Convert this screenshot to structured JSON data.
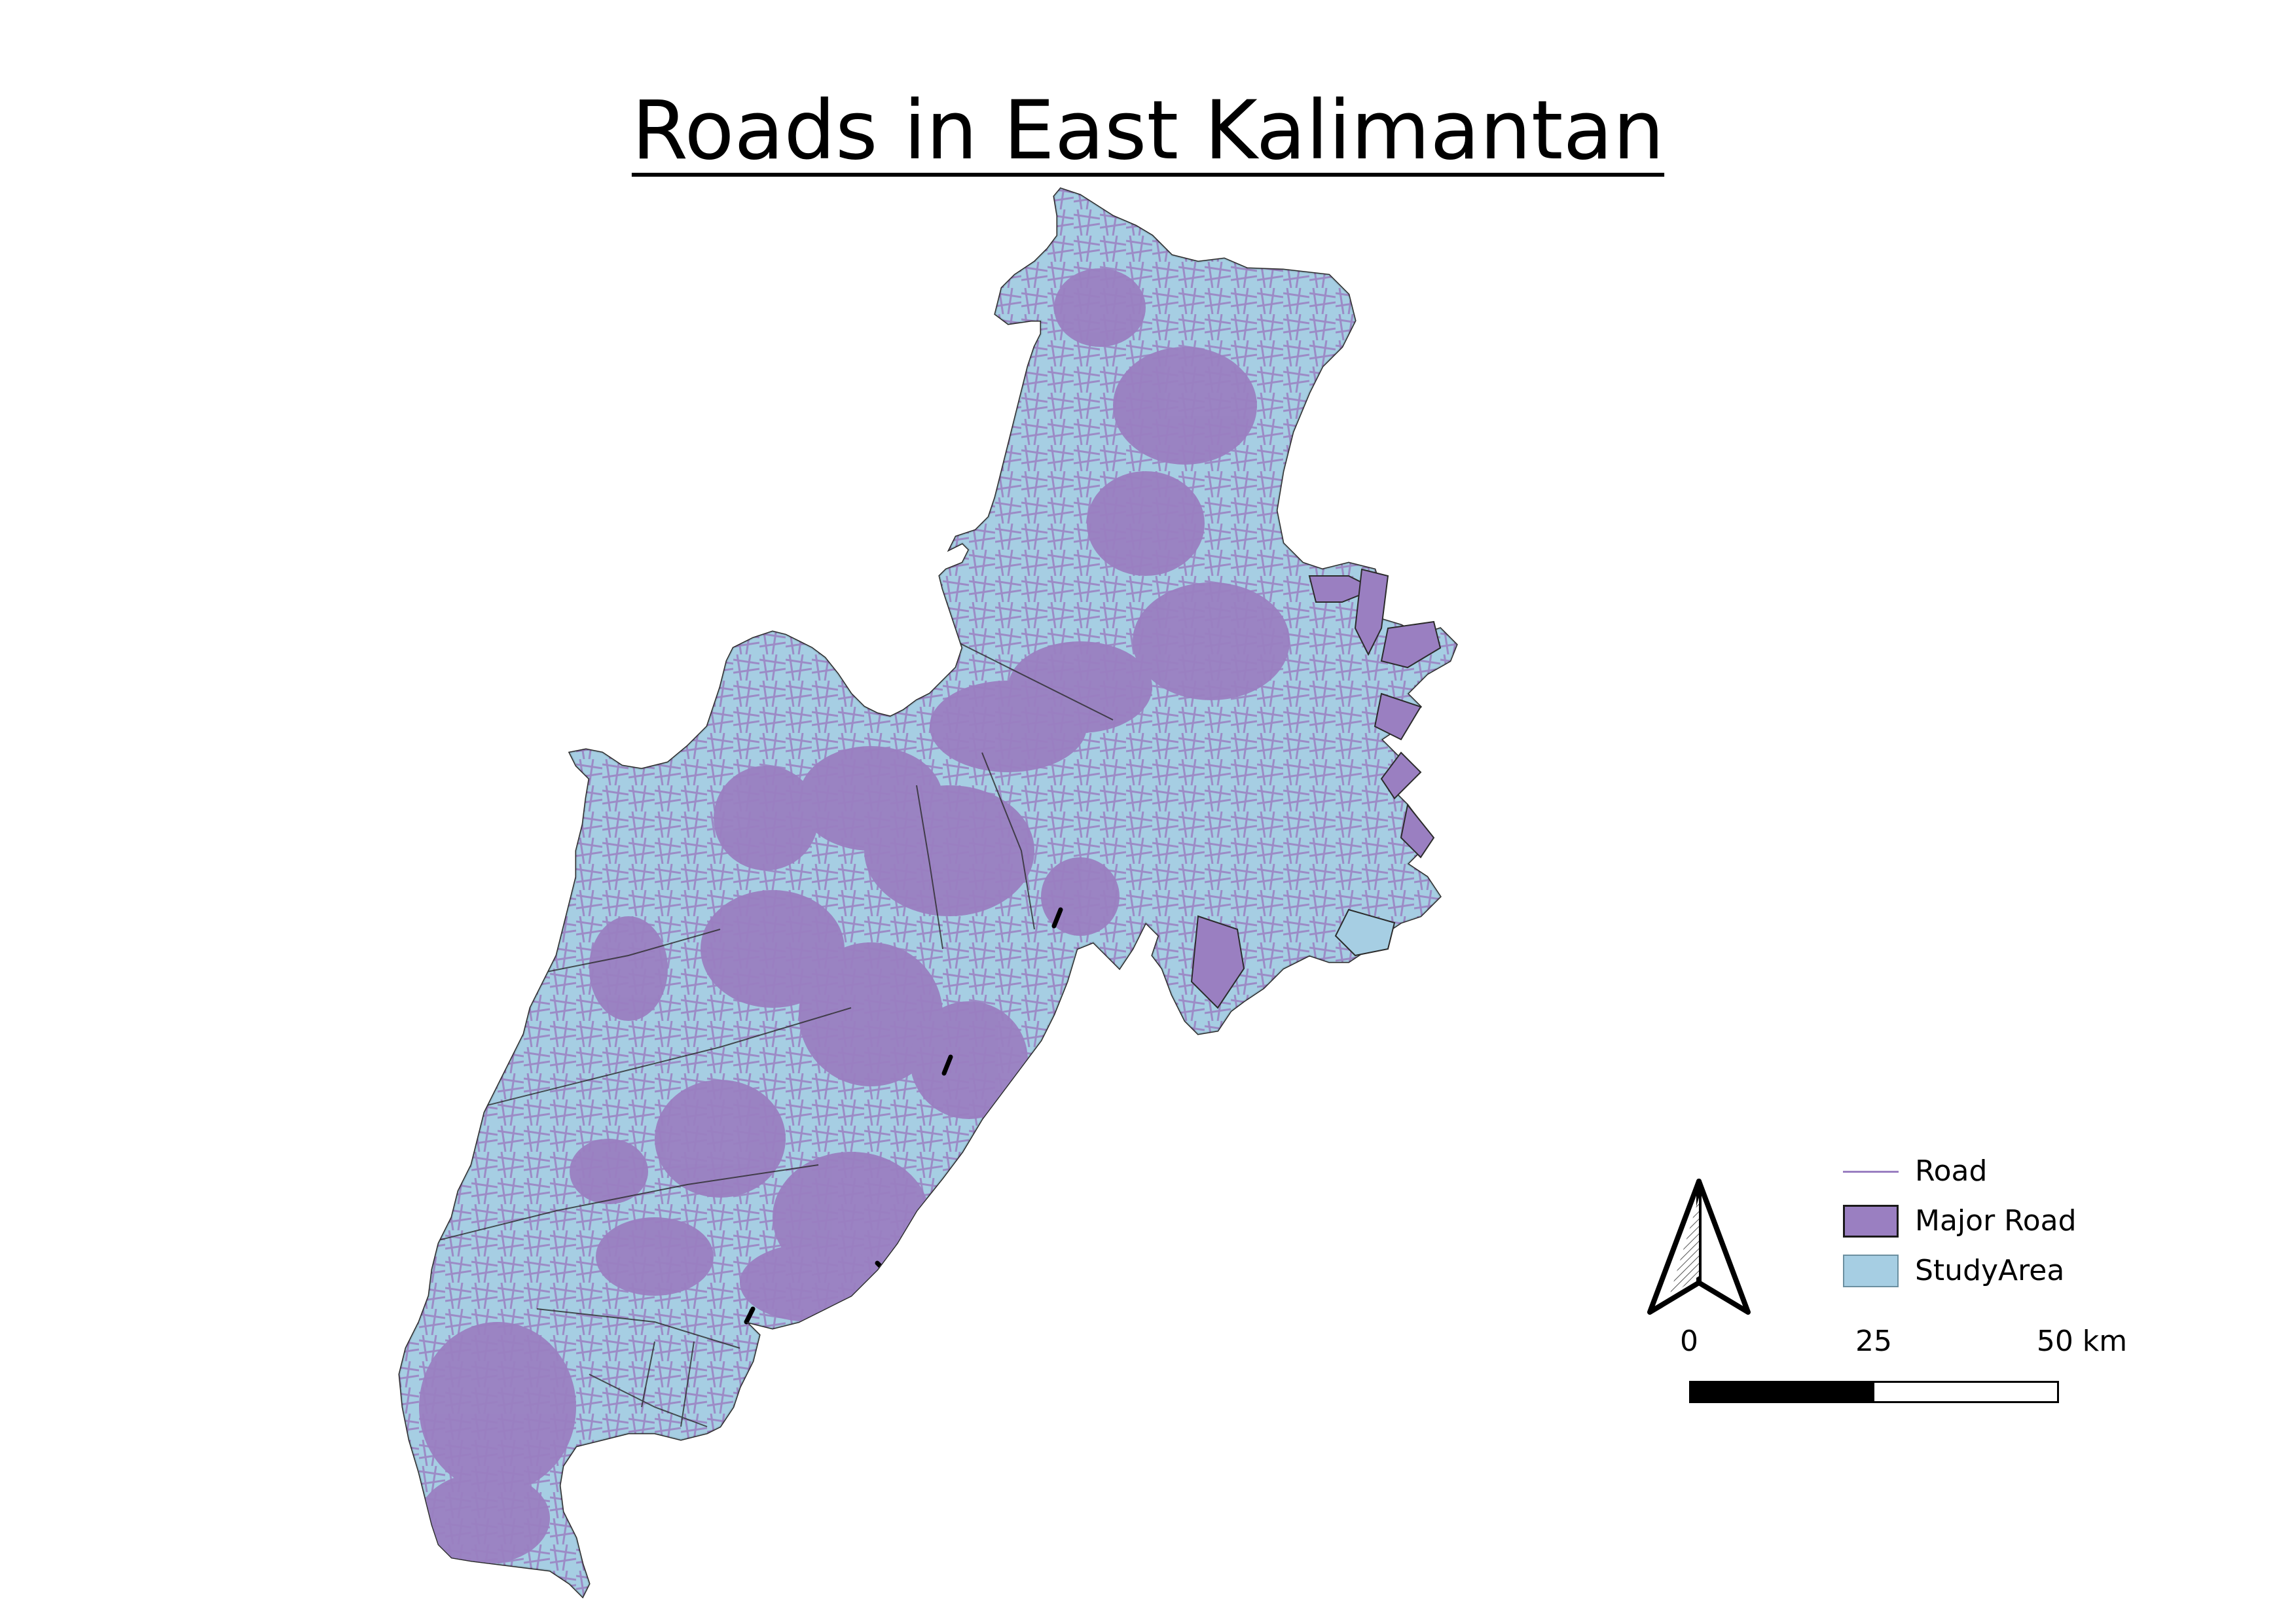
{
  "map": {
    "title": "Roads in East Kalimantan"
  },
  "legend": {
    "items": [
      {
        "label": "Road",
        "symbol": "line",
        "color": "#9a7fc1"
      },
      {
        "label": "Major Road",
        "symbol": "fill",
        "color": "#9a7fc1",
        "outline": "#1a1a1a"
      },
      {
        "label": "StudyArea",
        "symbol": "fill",
        "color": "#a6cee3",
        "outline": "#6b8fa0"
      }
    ]
  },
  "scalebar": {
    "labels": [
      "0",
      "25",
      "50 km"
    ],
    "colors": [
      "#000000",
      "#ffffff"
    ]
  },
  "north_arrow": {
    "icon": "north-arrow-icon"
  },
  "colors": {
    "study_area": "#a6cee3",
    "road": "#9a7fc1",
    "major_road": "#9a7fc1",
    "boundary": "#2b2b2b"
  }
}
